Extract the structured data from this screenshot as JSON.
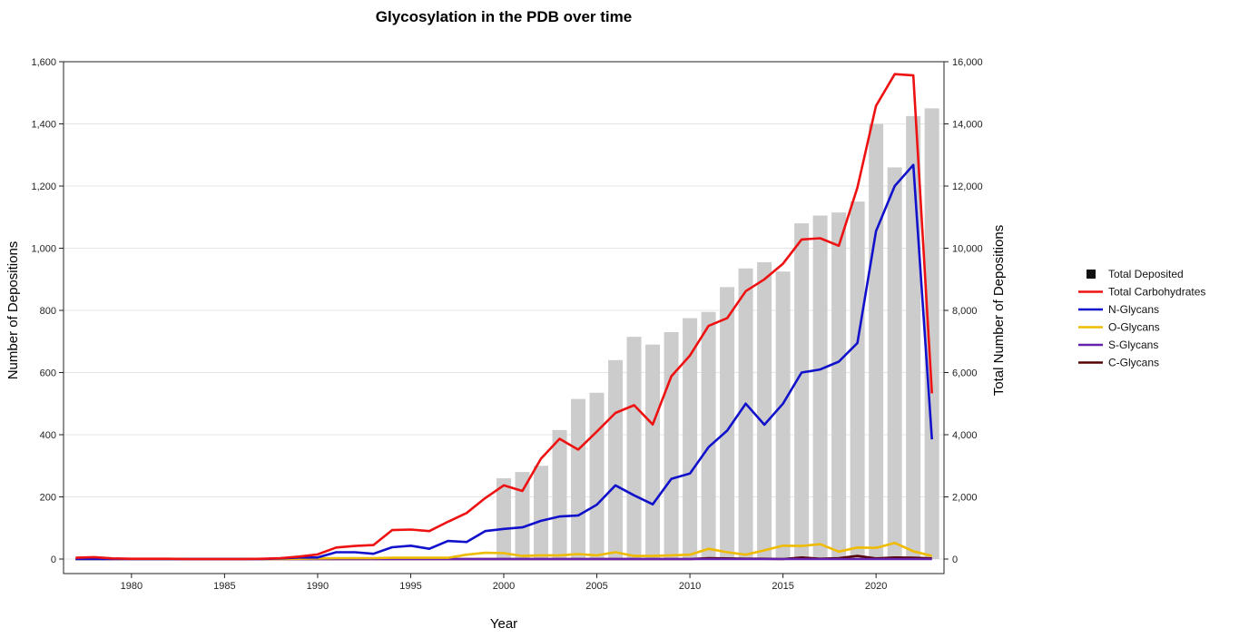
{
  "chart_data": {
    "type": "bar",
    "title": "Glycosylation in the PDB over time",
    "xlabel": "Year",
    "ylabel": "Number of Depositions",
    "y2label": "Total Number of Depositions",
    "xlim": [
      1977,
      2023
    ],
    "ylim": [
      0,
      1600
    ],
    "y2lim": [
      0,
      16000
    ],
    "x_ticks": [
      1980,
      1985,
      1990,
      1995,
      2000,
      2005,
      2010,
      2015,
      2020
    ],
    "y_ticks": [
      "0",
      "200",
      "400",
      "600",
      "800",
      "1,000",
      "1,200",
      "1,400",
      "1,600"
    ],
    "y2_ticks": [
      "0",
      "2,000",
      "4,000",
      "6,000",
      "8,000",
      "10,000",
      "12,000",
      "14,000",
      "16,000"
    ],
    "grid": "horizontal",
    "legend_position": "right",
    "years": [
      1977,
      1978,
      1979,
      1980,
      1981,
      1982,
      1983,
      1984,
      1985,
      1986,
      1987,
      1988,
      1989,
      1990,
      1991,
      1992,
      1993,
      1994,
      1995,
      1996,
      1997,
      1998,
      1999,
      2000,
      2001,
      2002,
      2003,
      2004,
      2005,
      2006,
      2007,
      2008,
      2009,
      2010,
      2011,
      2012,
      2013,
      2014,
      2015,
      2016,
      2017,
      2018,
      2019,
      2020,
      2021,
      2022,
      2023
    ],
    "bars": {
      "name": "Total Deposited",
      "color": "#cccccc",
      "axis": "right",
      "values": [
        0,
        0,
        0,
        0,
        0,
        0,
        0,
        0,
        0,
        0,
        0,
        0,
        0,
        0,
        0,
        0,
        0,
        0,
        0,
        0,
        0,
        0,
        0,
        2600,
        2800,
        3000,
        4150,
        5150,
        5350,
        6400,
        7150,
        6900,
        7300,
        7750,
        7950,
        8750,
        9350,
        9550,
        9250,
        10800,
        11050,
        11150,
        11500,
        14000,
        12600,
        14250,
        14500
      ]
    },
    "series": [
      {
        "name": "Total Carbohydrates",
        "color": "#ee1111",
        "values": [
          4,
          6,
          2,
          1,
          1,
          1,
          0,
          0,
          0,
          0,
          1,
          3,
          8,
          15,
          37,
          42,
          45,
          93,
          95,
          90,
          120,
          148,
          196,
          237,
          219,
          323,
          387,
          352,
          410,
          470,
          495,
          433,
          588,
          655,
          750,
          775,
          862,
          900,
          950,
          1028,
          1032,
          1008,
          1195,
          1458,
          1560,
          1556,
          533
        ]
      },
      {
        "name": "N-Glycans",
        "color": "#1111cc",
        "values": [
          0,
          0,
          0,
          0,
          0,
          0,
          0,
          0,
          0,
          0,
          0,
          2,
          5,
          5,
          22,
          22,
          17,
          38,
          43,
          33,
          58,
          55,
          90,
          97,
          102,
          123,
          137,
          140,
          175,
          237,
          205,
          176,
          258,
          275,
          360,
          413,
          500,
          432,
          500,
          600,
          610,
          635,
          695,
          1055,
          1200,
          1268,
          385
        ]
      },
      {
        "name": "O-Glycans",
        "color": "#eebb00",
        "values": [
          0,
          0,
          0,
          0,
          0,
          0,
          0,
          0,
          0,
          0,
          0,
          0,
          1,
          2,
          3,
          3,
          3,
          4,
          4,
          4,
          4,
          14,
          20,
          19,
          10,
          12,
          12,
          16,
          12,
          22,
          10,
          10,
          12,
          14,
          33,
          22,
          14,
          28,
          43,
          42,
          48,
          24,
          37,
          36,
          52,
          25,
          10
        ]
      },
      {
        "name": "S-Glycans",
        "color": "#6622aa",
        "values": [
          0,
          0,
          0,
          0,
          0,
          0,
          0,
          0,
          0,
          0,
          0,
          0,
          0,
          0,
          0,
          0,
          0,
          0,
          0,
          0,
          0,
          0,
          0,
          0,
          0,
          0,
          0,
          0,
          0,
          0,
          0,
          0,
          0,
          0,
          0,
          0,
          0,
          0,
          0,
          0,
          0,
          0,
          0,
          0,
          0,
          0,
          0
        ]
      },
      {
        "name": "C-Glycans",
        "color": "#550000",
        "values": [
          0,
          0,
          0,
          0,
          0,
          0,
          0,
          0,
          0,
          0,
          0,
          0,
          0,
          0,
          0,
          0,
          0,
          0,
          0,
          0,
          0,
          0,
          0,
          0,
          0,
          0,
          0,
          0,
          0,
          0,
          0,
          0,
          0,
          0,
          3,
          2,
          1,
          1,
          0,
          5,
          1,
          3,
          10,
          2,
          5,
          4,
          2
        ]
      }
    ]
  }
}
